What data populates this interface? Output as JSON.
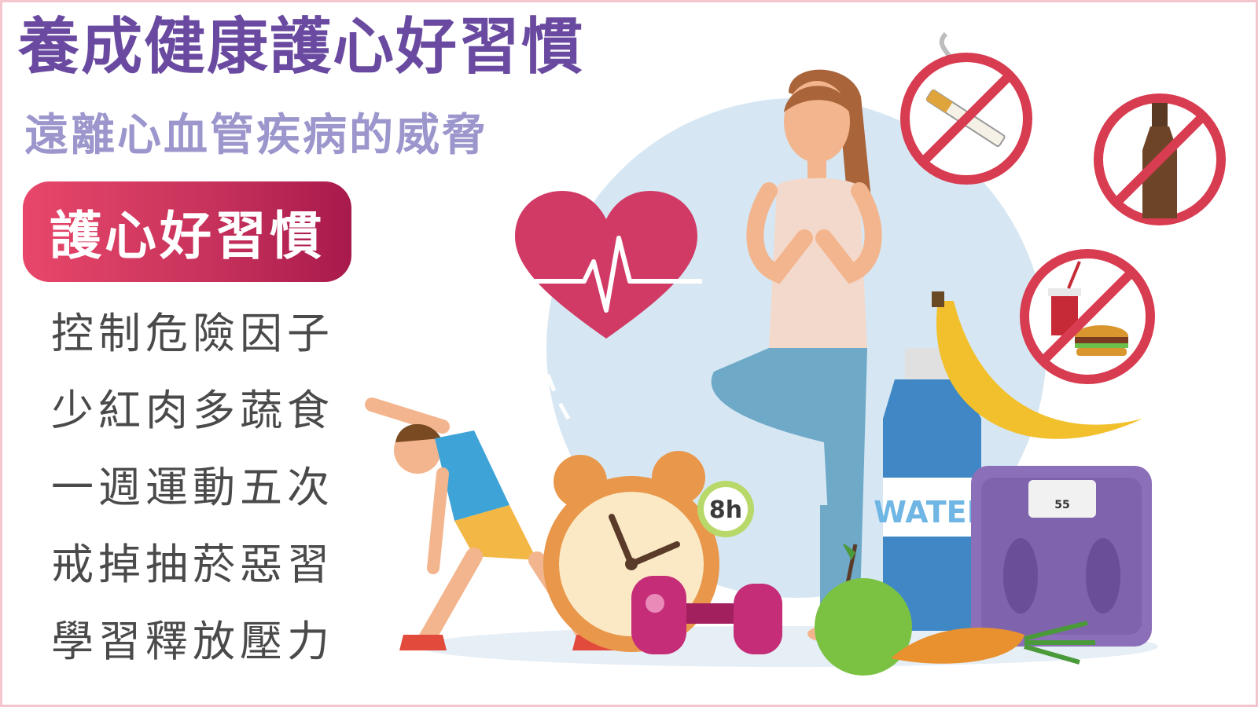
{
  "title": "養成健康護心好習慣",
  "subtitle": "遠離心血管疾病的威脅",
  "badge": {
    "label": "護心好習慣"
  },
  "habits": [
    "控制危險因子",
    "少紅肉多蔬食",
    "一週運動五次",
    "戒掉抽菸惡習",
    "學習釋放壓力"
  ],
  "illustration": {
    "clock_badge": "8h",
    "bottle_label": "WATER",
    "scale_reading": "55"
  },
  "colors": {
    "title": "#6a4aa0",
    "subtitle": "#9b96cc",
    "badge": "#c8335c",
    "heart": "#d13a64",
    "prohibition": "#d83c50"
  }
}
